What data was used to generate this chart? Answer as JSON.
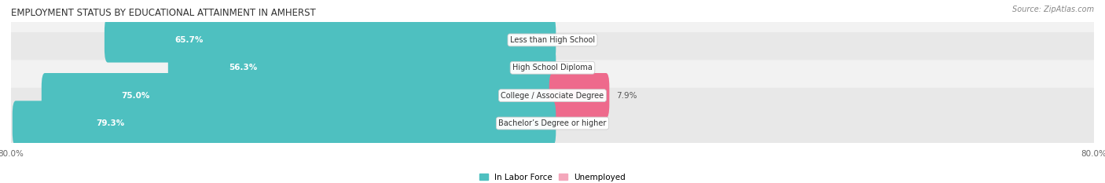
{
  "title": "EMPLOYMENT STATUS BY EDUCATIONAL ATTAINMENT IN AMHERST",
  "source": "Source: ZipAtlas.com",
  "categories": [
    "Less than High School",
    "High School Diploma",
    "College / Associate Degree",
    "Bachelor’s Degree or higher"
  ],
  "labor_force": [
    65.7,
    56.3,
    75.0,
    79.3
  ],
  "unemployed": [
    0.0,
    0.0,
    7.9,
    0.0
  ],
  "labor_force_color": "#4EC0C0",
  "unemployed_color_light": "#F4A7BB",
  "unemployed_color_dark": "#EE6A8C",
  "row_bg_colors": [
    "#F2F2F2",
    "#E8E8E8"
  ],
  "x_min": -80.0,
  "x_max": 80.0,
  "legend_labor_label": "In Labor Force",
  "legend_unemployed_label": "Unemployed",
  "title_fontsize": 8.5,
  "source_fontsize": 7,
  "label_fontsize": 7.5,
  "cat_fontsize": 7,
  "tick_fontsize": 7.5
}
